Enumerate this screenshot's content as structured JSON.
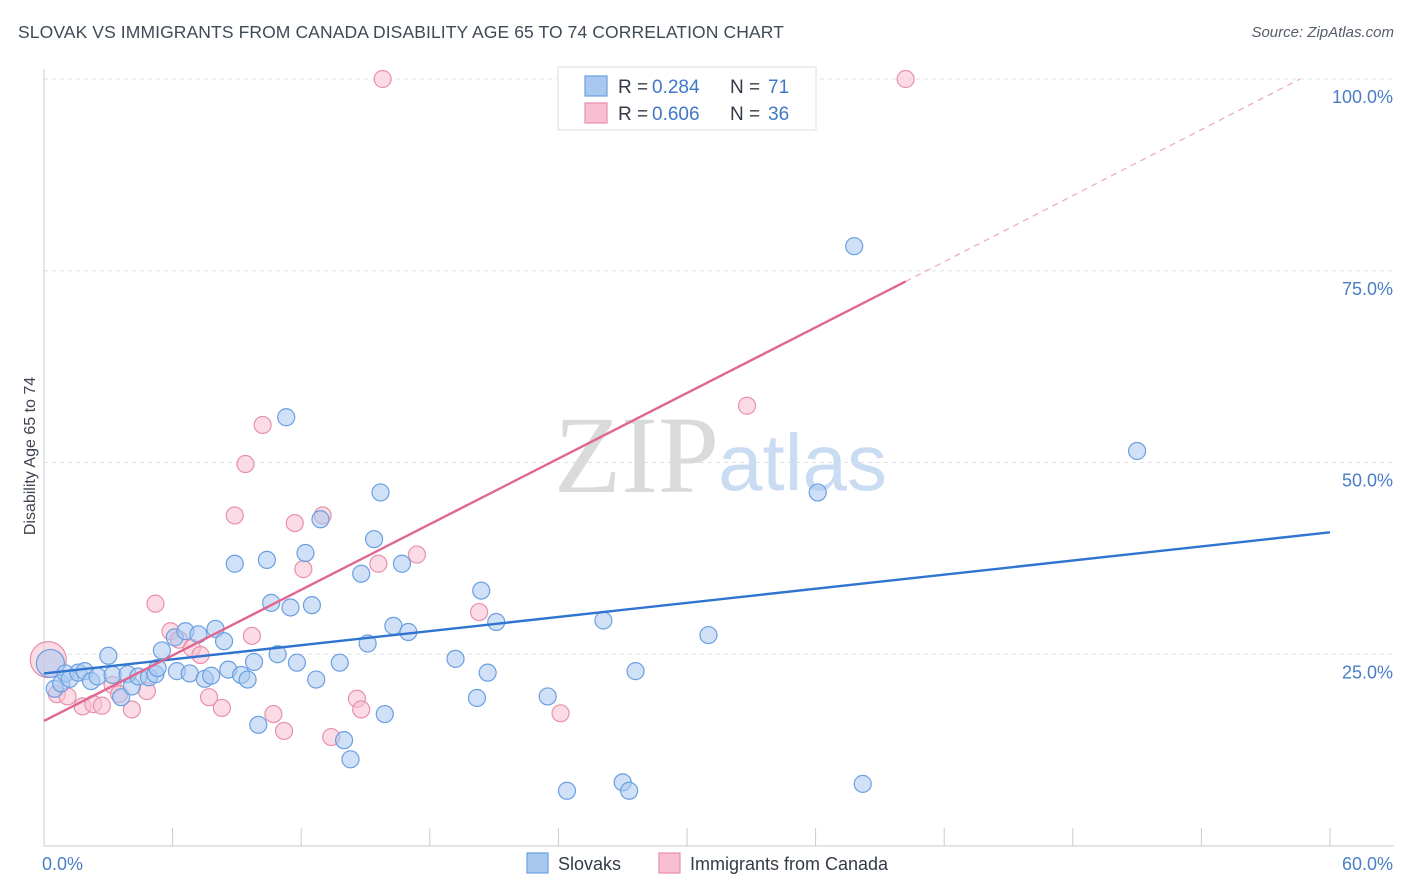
{
  "header": {
    "title": "SLOVAK VS IMMIGRANTS FROM CANADA DISABILITY AGE 65 TO 74 CORRELATION CHART",
    "source": "Source: ZipAtlas.com"
  },
  "watermark": {
    "zip": "ZIP",
    "atlas": "atlas"
  },
  "chart_data": {
    "type": "scatter",
    "title": "SLOVAK VS IMMIGRANTS FROM CANADA DISABILITY AGE 65 TO 74 CORRELATION CHART",
    "xlabel": "",
    "ylabel": "Disability Age 65 to 74",
    "xlim": [
      0,
      60
    ],
    "ylim": [
      0,
      100
    ],
    "x_tick_labels": {
      "left": "0.0%",
      "right": "60.0%"
    },
    "y_ticks": [
      {
        "value": 25,
        "label": "25.0%"
      },
      {
        "value": 50,
        "label": "50.0%"
      },
      {
        "value": 75,
        "label": "75.0%"
      },
      {
        "value": 100,
        "label": "100.0%"
      }
    ],
    "grid": true,
    "legend_position": "top-center",
    "colors": {
      "slovaks_fill": "#a9c8f0",
      "slovaks_stroke": "#6a9fe0",
      "slovaks_line": "#2f74d0",
      "canada_fill": "#f7bfd0",
      "canada_stroke": "#e890ad",
      "canada_line": "#e06790",
      "tick_label": "#4a7ec6",
      "grid": "#dde1e6"
    },
    "series": [
      {
        "name": "Slovaks",
        "R": "0.284",
        "N": "71",
        "trend": {
          "x0": 0,
          "y0": 22.5,
          "x1": 60,
          "y1": 40.9,
          "dash_from": null
        },
        "points": [
          [
            0.3,
            23.8
          ],
          [
            0.5,
            20.5
          ],
          [
            0.8,
            21.2
          ],
          [
            1.0,
            22.5
          ],
          [
            1.2,
            21.8
          ],
          [
            1.6,
            22.6
          ],
          [
            1.9,
            22.8
          ],
          [
            2.2,
            21.5
          ],
          [
            2.5,
            22.1
          ],
          [
            3.0,
            24.8
          ],
          [
            3.2,
            22.3
          ],
          [
            3.6,
            19.4
          ],
          [
            3.9,
            22.4
          ],
          [
            4.1,
            20.8
          ],
          [
            4.4,
            22.1
          ],
          [
            4.9,
            22.0
          ],
          [
            5.2,
            22.4
          ],
          [
            5.3,
            23.2
          ],
          [
            5.5,
            25.5
          ],
          [
            6.1,
            27.2
          ],
          [
            6.2,
            22.8
          ],
          [
            6.6,
            28.0
          ],
          [
            6.8,
            22.5
          ],
          [
            7.2,
            27.6
          ],
          [
            7.5,
            21.8
          ],
          [
            7.8,
            22.2
          ],
          [
            8.0,
            28.3
          ],
          [
            8.4,
            26.7
          ],
          [
            8.6,
            23.0
          ],
          [
            8.9,
            36.8
          ],
          [
            9.2,
            22.3
          ],
          [
            9.5,
            21.7
          ],
          [
            9.8,
            24.0
          ],
          [
            10.0,
            15.8
          ],
          [
            10.4,
            37.3
          ],
          [
            10.6,
            31.7
          ],
          [
            10.9,
            25.0
          ],
          [
            11.3,
            55.9
          ],
          [
            11.5,
            31.1
          ],
          [
            11.8,
            23.9
          ],
          [
            12.2,
            38.2
          ],
          [
            12.5,
            31.4
          ],
          [
            12.7,
            21.7
          ],
          [
            12.9,
            42.6
          ],
          [
            13.8,
            23.9
          ],
          [
            14.0,
            13.8
          ],
          [
            14.3,
            11.3
          ],
          [
            14.8,
            35.5
          ],
          [
            15.1,
            26.4
          ],
          [
            15.4,
            40.0
          ],
          [
            15.7,
            46.1
          ],
          [
            15.9,
            17.2
          ],
          [
            16.3,
            28.7
          ],
          [
            16.7,
            36.8
          ],
          [
            17.0,
            27.9
          ],
          [
            19.2,
            24.4
          ],
          [
            20.2,
            19.3
          ],
          [
            20.4,
            33.3
          ],
          [
            20.7,
            22.6
          ],
          [
            21.1,
            29.2
          ],
          [
            23.5,
            19.5
          ],
          [
            24.4,
            7.2
          ],
          [
            26.1,
            29.4
          ],
          [
            27.0,
            8.3
          ],
          [
            27.3,
            7.2
          ],
          [
            27.6,
            22.8
          ],
          [
            31.0,
            27.5
          ],
          [
            36.1,
            46.1
          ],
          [
            37.8,
            78.2
          ],
          [
            38.2,
            8.1
          ],
          [
            51.0,
            51.5
          ]
        ]
      },
      {
        "name": "Immigrants from Canada",
        "R": "0.606",
        "N": "36",
        "trend": {
          "x0": 0,
          "y0": 16.3,
          "x1": 40.2,
          "y1": 73.6,
          "dash_to_x": 58.6,
          "dash_to_y": 100.0
        },
        "points": [
          [
            0.2,
            24.3
          ],
          [
            0.6,
            19.8
          ],
          [
            1.1,
            19.5
          ],
          [
            1.8,
            18.2
          ],
          [
            2.3,
            18.5
          ],
          [
            2.7,
            18.3
          ],
          [
            3.2,
            21.0
          ],
          [
            3.5,
            19.8
          ],
          [
            4.1,
            17.8
          ],
          [
            4.8,
            20.2
          ],
          [
            5.2,
            31.6
          ],
          [
            5.9,
            28.0
          ],
          [
            6.3,
            26.9
          ],
          [
            6.9,
            25.8
          ],
          [
            7.3,
            24.9
          ],
          [
            7.7,
            19.4
          ],
          [
            8.3,
            18.0
          ],
          [
            8.9,
            43.1
          ],
          [
            9.4,
            49.8
          ],
          [
            9.7,
            27.4
          ],
          [
            10.2,
            54.9
          ],
          [
            10.7,
            17.2
          ],
          [
            11.2,
            15.0
          ],
          [
            11.7,
            42.1
          ],
          [
            12.1,
            36.1
          ],
          [
            13.0,
            43.1
          ],
          [
            13.4,
            14.2
          ],
          [
            14.6,
            19.2
          ],
          [
            14.8,
            17.8
          ],
          [
            15.6,
            36.8
          ],
          [
            15.8,
            100.0
          ],
          [
            17.4,
            38.0
          ],
          [
            20.3,
            30.5
          ],
          [
            24.1,
            17.3
          ],
          [
            32.8,
            57.4
          ],
          [
            40.2,
            100.0
          ]
        ]
      }
    ]
  },
  "legend": {
    "r_label": "R =",
    "n_label": "N =",
    "slovaks_r": "0.284",
    "slovaks_n": "71",
    "canada_r": "0.606",
    "canada_n": "36"
  },
  "bottom_legend": {
    "slovaks": "Slovaks",
    "canada": "Immigrants from Canada"
  }
}
